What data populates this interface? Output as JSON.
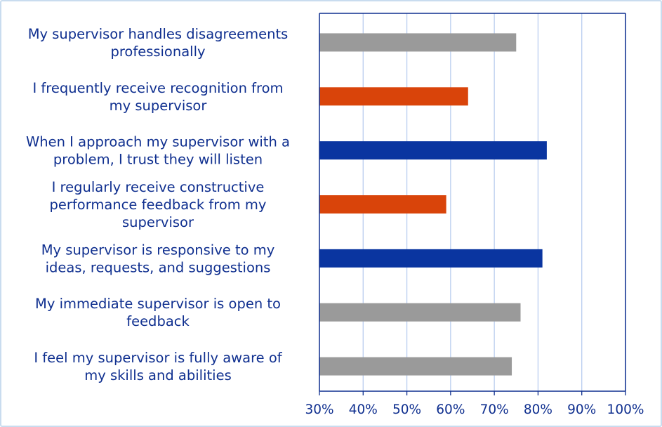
{
  "chart_data": {
    "type": "bar",
    "orientation": "horizontal",
    "title": "",
    "xlabel": "",
    "ylabel": "",
    "xlim": [
      30,
      100
    ],
    "grid": true,
    "legend": "none",
    "categories": [
      [
        "My supervisor handles disagreements",
        "professionally"
      ],
      [
        "I frequently receive recognition from",
        "my supervisor"
      ],
      [
        "When I approach my supervisor with a",
        "problem, I trust they will listen"
      ],
      [
        "I regularly receive constructive",
        "performance feedback from my",
        "supervisor"
      ],
      [
        "My supervisor is responsive to my",
        "ideas, requests, and suggestions"
      ],
      [
        "My immediate supervisor is open to",
        "feedback"
      ],
      [
        "I feel my supervisor is fully aware of",
        "my skills and abilities"
      ]
    ],
    "values": [
      75,
      64,
      82,
      59,
      81,
      76,
      74
    ],
    "colors": [
      "#9a9a9a",
      "#d9440a",
      "#0a35a0",
      "#d9440a",
      "#0a35a0",
      "#9a9a9a",
      "#9a9a9a"
    ],
    "ticks": [
      "30%",
      "40%",
      "50%",
      "60%",
      "70%",
      "80%",
      "90%",
      "100%"
    ],
    "tick_values": [
      30,
      40,
      50,
      60,
      70,
      80,
      90,
      100
    ]
  },
  "style": {
    "axis_color": "#0f2f8f",
    "grid_color": "#b9cdef",
    "text_color": "#0f2f8f"
  }
}
